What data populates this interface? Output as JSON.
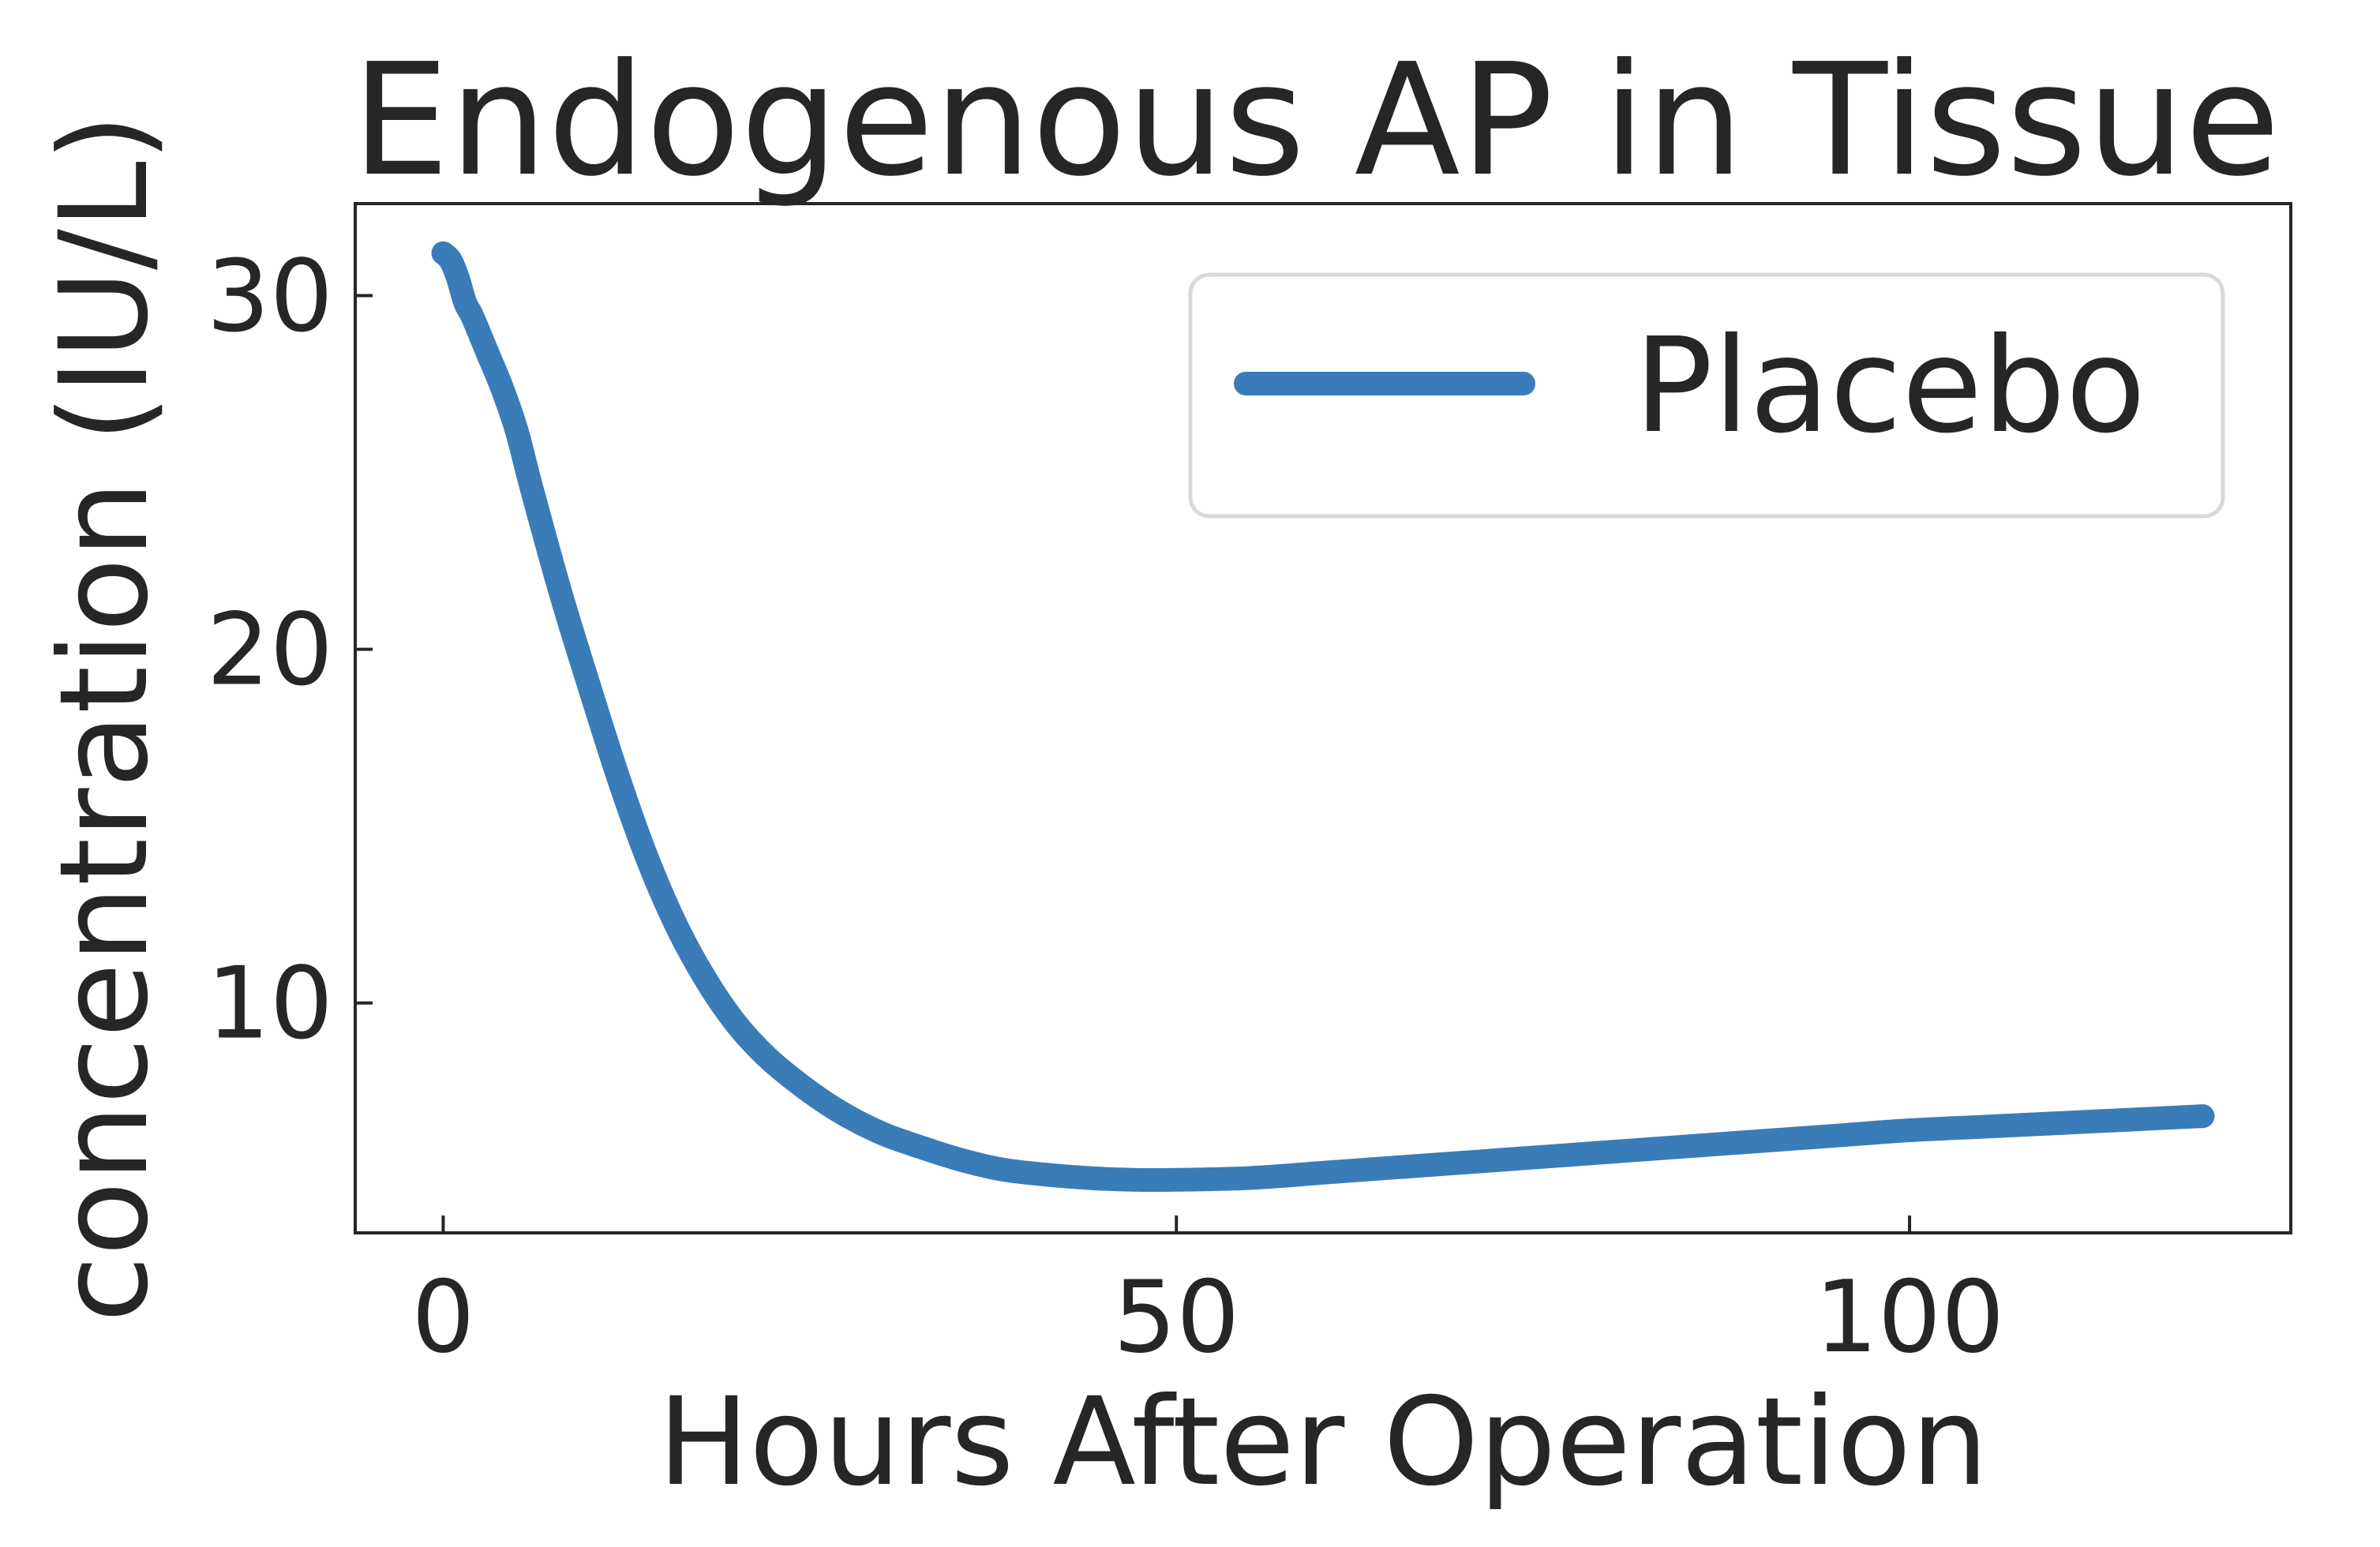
{
  "chart_data": {
    "type": "line",
    "title": "Endogenous AP in Tissue",
    "xlabel": "Hours After Operation",
    "ylabel": "concentration (IU/L)",
    "xlim": [
      -6,
      126
    ],
    "ylim": [
      3.5,
      32.6
    ],
    "xticks": [
      0,
      50,
      100
    ],
    "yticks": [
      10,
      20,
      30
    ],
    "grid": false,
    "legend_position": "top-right",
    "series": [
      {
        "name": "Placebo",
        "color": "#3a7cb8",
        "x": [
          0,
          0.5,
          1,
          1.5,
          2,
          3,
          4,
          5,
          6,
          8,
          10,
          12,
          14,
          16,
          18,
          20,
          22,
          24,
          26,
          28,
          30,
          32,
          35,
          38,
          41,
          44,
          47,
          50,
          55,
          60,
          65,
          70,
          75,
          80,
          85,
          90,
          95,
          100,
          105,
          110,
          115,
          120
        ],
        "y": [
          31.2,
          31.0,
          30.5,
          29.8,
          29.4,
          28.4,
          27.4,
          26.2,
          24.6,
          21.6,
          18.9,
          16.3,
          14.0,
          12.1,
          10.6,
          9.4,
          8.5,
          7.8,
          7.2,
          6.7,
          6.3,
          6.0,
          5.6,
          5.3,
          5.15,
          5.05,
          5.0,
          5.0,
          5.05,
          5.2,
          5.35,
          5.5,
          5.65,
          5.8,
          5.95,
          6.1,
          6.25,
          6.4,
          6.5,
          6.6,
          6.7,
          6.8
        ]
      }
    ]
  }
}
